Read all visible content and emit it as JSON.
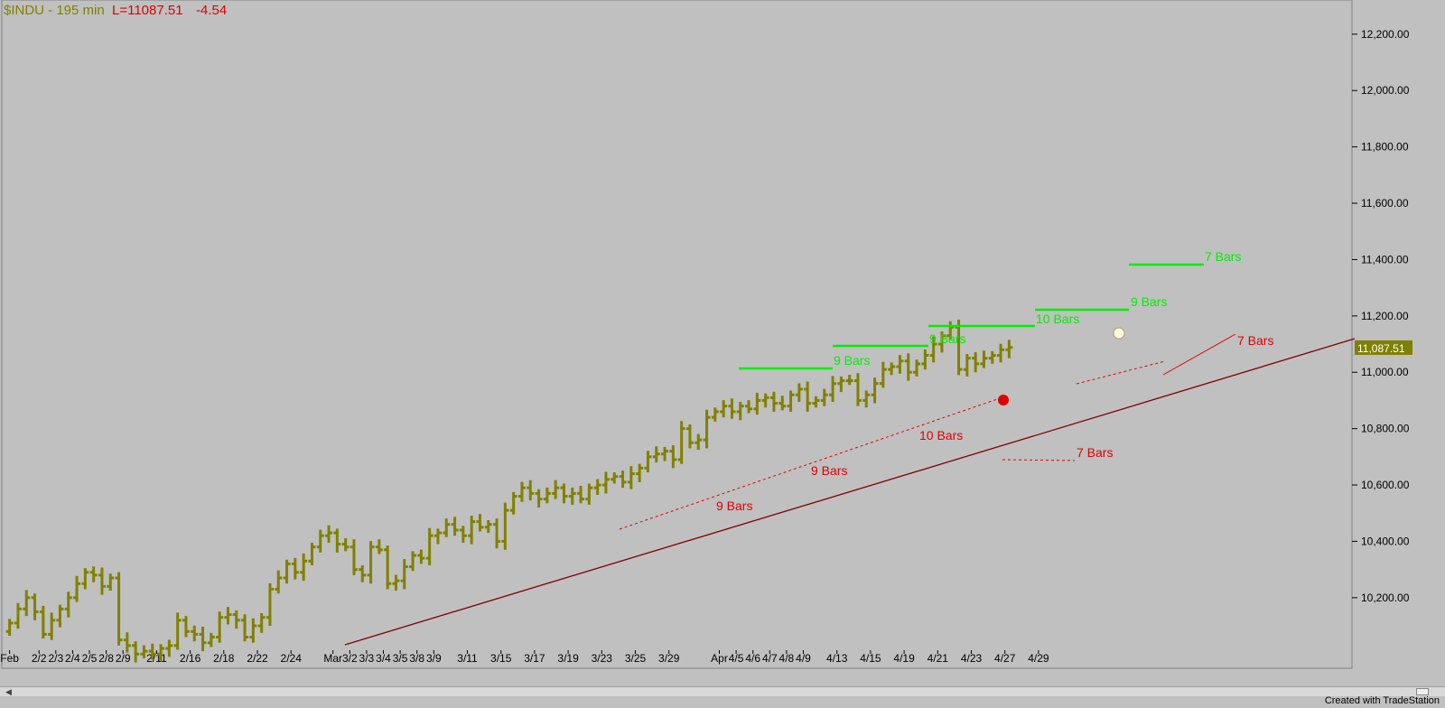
{
  "header": {
    "symbol": "$INDU - 195 min",
    "last": "L=11087.51",
    "change": "-4.54"
  },
  "footer": "Created with TradeStation",
  "colors": {
    "background": "#c0c0c0",
    "bars": "#808000",
    "green_levels": "#00ee00",
    "red": "#e00000",
    "trendline": "#800000"
  },
  "chart_data": {
    "type": "ohlc-bar",
    "symbol": "$INDU",
    "interval": "195 min",
    "ylim": [
      10020,
      12270
    ],
    "y_ticks": [
      "12,200.00",
      "12,000.00",
      "11,800.00",
      "11,600.00",
      "11,400.00",
      "11,200.00",
      "11,000.00",
      "10,800.00",
      "10,600.00",
      "10,400.00",
      "10,200.00"
    ],
    "y_tick_values": [
      12200,
      12000,
      11800,
      11600,
      11400,
      11200,
      11000,
      10800,
      10600,
      10400,
      10200
    ],
    "last_price_label": "11,087.51",
    "last_price": 11087.51,
    "x_labels": [
      {
        "t": 0.5,
        "label": "Feb"
      },
      {
        "t": 4,
        "label": "2/2"
      },
      {
        "t": 6,
        "label": "2/3"
      },
      {
        "t": 8,
        "label": "2/4"
      },
      {
        "t": 10,
        "label": "2/5"
      },
      {
        "t": 12,
        "label": "2/8"
      },
      {
        "t": 14,
        "label": "2/9"
      },
      {
        "t": 18,
        "label": "2/11"
      },
      {
        "t": 22,
        "label": "2/16"
      },
      {
        "t": 26,
        "label": "2/18"
      },
      {
        "t": 30,
        "label": "2/22"
      },
      {
        "t": 34,
        "label": "2/24"
      },
      {
        "t": 39,
        "label": "Mar"
      },
      {
        "t": 41,
        "label": "3/2"
      },
      {
        "t": 43,
        "label": "3/3"
      },
      {
        "t": 45,
        "label": "3/4"
      },
      {
        "t": 47,
        "label": "3/5"
      },
      {
        "t": 49,
        "label": "3/8"
      },
      {
        "t": 51,
        "label": "3/9"
      },
      {
        "t": 55,
        "label": "3/11"
      },
      {
        "t": 59,
        "label": "3/15"
      },
      {
        "t": 63,
        "label": "3/17"
      },
      {
        "t": 67,
        "label": "3/19"
      },
      {
        "t": 71,
        "label": "3/23"
      },
      {
        "t": 75,
        "label": "3/25"
      },
      {
        "t": 79,
        "label": "3/29"
      },
      {
        "t": 85,
        "label": "Apr"
      },
      {
        "t": 87,
        "label": "4/5"
      },
      {
        "t": 89,
        "label": "4/6"
      },
      {
        "t": 91,
        "label": "4/7"
      },
      {
        "t": 93,
        "label": "4/8"
      },
      {
        "t": 95,
        "label": "4/9"
      },
      {
        "t": 99,
        "label": "4/13"
      },
      {
        "t": 103,
        "label": "4/15"
      },
      {
        "t": 107,
        "label": "4/19"
      },
      {
        "t": 111,
        "label": "4/21"
      },
      {
        "t": 115,
        "label": "4/23"
      },
      {
        "t": 119,
        "label": "4/27"
      },
      {
        "t": 123,
        "label": "4/29"
      }
    ],
    "closes": [
      10110,
      10160,
      10200,
      10150,
      10070,
      10120,
      10160,
      10200,
      10250,
      10290,
      10280,
      10240,
      10270,
      10050,
      10030,
      10000,
      10010,
      10000,
      10020,
      10030,
      10120,
      10080,
      10070,
      10040,
      10060,
      10130,
      10140,
      10120,
      10060,
      10100,
      10130,
      10230,
      10270,
      10320,
      10290,
      10330,
      10380,
      10420,
      10430,
      10390,
      10380,
      10300,
      10280,
      10380,
      10370,
      10250,
      10260,
      10310,
      10350,
      10340,
      10420,
      10430,
      10460,
      10440,
      10420,
      10470,
      10450,
      10460,
      10400,
      10510,
      10560,
      10590,
      10570,
      10550,
      10570,
      10590,
      10560,
      10570,
      10550,
      10590,
      10600,
      10620,
      10630,
      10610,
      10640,
      10660,
      10700,
      10710,
      10720,
      10690,
      10800,
      10750,
      10760,
      10840,
      10860,
      10880,
      10860,
      10880,
      10870,
      10900,
      10910,
      10890,
      10880,
      10920,
      10940,
      10890,
      10900,
      10920,
      10960,
      10970,
      10970,
      10900,
      10920,
      10960,
      11010,
      11020,
      11040,
      11000,
      11030,
      11060,
      11100,
      11130,
      11160,
      11010,
      11050,
      11030,
      11050,
      11060,
      11080,
      11088
    ]
  },
  "annotations": [
    {
      "label": "7 Bars",
      "color": "green",
      "price": 11370
    },
    {
      "label": "9 Bars",
      "color": "green",
      "price": 11200
    },
    {
      "label": "10 Bars",
      "color": "green",
      "price": 11150
    },
    {
      "label": "9 Bars",
      "color": "green",
      "price": 11070
    },
    {
      "label": "9 Bars",
      "color": "green",
      "price": 10990
    },
    {
      "label": "7 Bars",
      "color": "red"
    },
    {
      "label": "10 Bars",
      "color": "red"
    },
    {
      "label": "9 Bars",
      "color": "red"
    },
    {
      "label": "9 Bars",
      "color": "red"
    },
    {
      "label": "7 Bars",
      "color": "red"
    }
  ]
}
